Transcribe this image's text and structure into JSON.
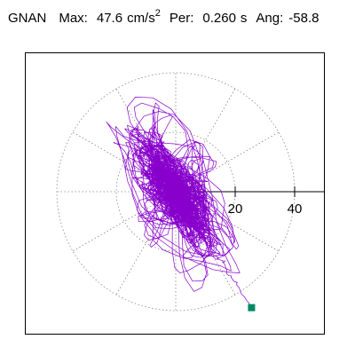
{
  "header": {
    "station": "GNAN",
    "max_label": "Max:",
    "max_value": "47.6",
    "max_unit": "cm/s",
    "max_unit_exp": "2",
    "per_label": "Per:",
    "per_value": "0.260",
    "per_unit": "s",
    "ang_label": "Ang:",
    "ang_value": "-58.8"
  },
  "chart_data": {
    "type": "line",
    "subtype": "polar-orbit",
    "title": "",
    "xlabel": "",
    "ylabel": "",
    "units": "cm/s²",
    "polar_grid": {
      "radii": [
        20,
        40
      ],
      "spokes_deg": [
        0,
        30,
        60,
        90,
        120,
        150,
        180,
        210,
        240,
        270,
        300,
        330
      ],
      "style": "dotted"
    },
    "axes": {
      "x_ticks": [
        20,
        40
      ],
      "x_tick_labels": [
        "20",
        "40"
      ],
      "xlim": [
        -48,
        48
      ],
      "ylim": [
        -42,
        48
      ]
    },
    "max_amplitude": 47.6,
    "period_s": 0.26,
    "angle_deg": -58.8,
    "trace_color": "#8800cc",
    "end_marker_color": "#008866",
    "end_point": [
      25.5,
      -39
    ]
  }
}
